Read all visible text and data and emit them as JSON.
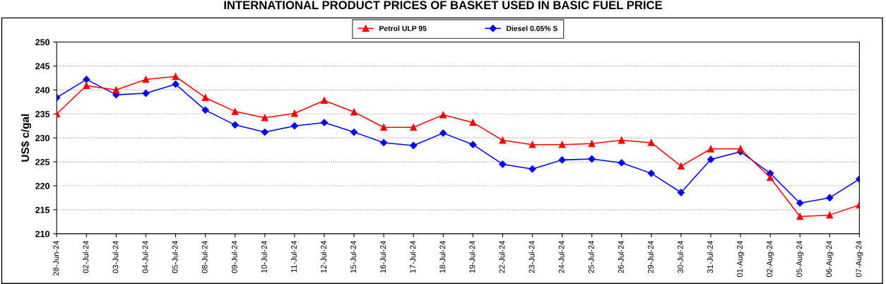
{
  "chart_data": {
    "type": "line",
    "title": "INTERNATIONAL PRODUCT PRICES OF BASKET USED IN BASIC FUEL PRICE",
    "ylabel": "US$ c/gal",
    "categories": [
      "28-Jun-24",
      "02-Jul-24",
      "03-Jul-24",
      "04-Jul-24",
      "05-Jul-24",
      "08-Jul-24",
      "09-Jul-24",
      "10-Jul-24",
      "11-Jul-24",
      "12-Jul-24",
      "15-Jul-24",
      "16-Jul-24",
      "17-Jul-24",
      "18-Jul-24",
      "19-Jul-24",
      "22-Jul-24",
      "23-Jul-24",
      "24-Jul-24",
      "25-Jul-24",
      "26-Jul-24",
      "29-Jul-24",
      "30-Jul-24",
      "31-Jul-24",
      "01-Aug-24",
      "02-Aug-24",
      "05-Aug-24",
      "06-Aug-24",
      "07-Aug-24"
    ],
    "series": [
      {
        "name": "Petrol ULP 95",
        "color": "#ff0000",
        "marker": "triangle",
        "values": [
          235.0,
          240.9,
          240.0,
          242.2,
          242.8,
          238.4,
          235.5,
          234.2,
          235.1,
          237.8,
          235.4,
          232.2,
          232.2,
          234.8,
          233.2,
          229.5,
          228.6,
          228.6,
          228.8,
          229.5,
          229.0,
          224.1,
          227.7,
          227.7,
          221.7,
          213.6,
          213.9,
          216.0
        ]
      },
      {
        "name": "Diesel 0.05% S",
        "color": "#0000ff",
        "marker": "diamond",
        "values": [
          238.4,
          242.2,
          239.0,
          239.3,
          241.2,
          235.8,
          232.7,
          231.2,
          232.5,
          233.2,
          231.2,
          229.0,
          228.4,
          231.0,
          228.6,
          224.5,
          223.5,
          225.4,
          225.6,
          224.8,
          222.6,
          218.6,
          225.5,
          227.1,
          222.6,
          216.4,
          217.5,
          221.4
        ]
      }
    ],
    "ylim": [
      210,
      250
    ],
    "yticks": [
      210,
      215,
      220,
      225,
      230,
      235,
      240,
      245,
      250
    ],
    "grid": "y",
    "legend": "top",
    "line_style": "solid"
  }
}
